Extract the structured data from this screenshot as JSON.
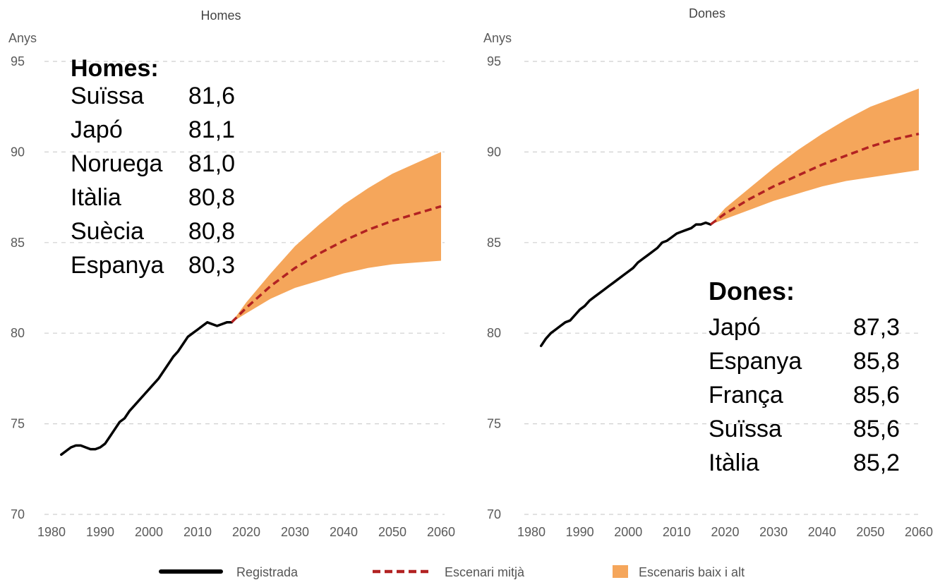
{
  "chart_data": [
    {
      "type": "line",
      "title": "Homes",
      "ylabel": "Anys",
      "xlim": [
        1980,
        2060
      ],
      "ylim": [
        70,
        95
      ],
      "xticks": [
        1980,
        1990,
        2000,
        2010,
        2020,
        2030,
        2040,
        2050,
        2060
      ],
      "yticks": [
        70,
        75,
        80,
        85,
        90,
        95
      ],
      "grid": true,
      "series": [
        {
          "name": "Registrada",
          "style": "solid",
          "color": "#000000",
          "x": [
            1982,
            1983,
            1984,
            1985,
            1986,
            1987,
            1988,
            1989,
            1990,
            1991,
            1992,
            1993,
            1994,
            1995,
            1996,
            1997,
            1998,
            1999,
            2000,
            2001,
            2002,
            2003,
            2004,
            2005,
            2006,
            2007,
            2008,
            2009,
            2010,
            2011,
            2012,
            2013,
            2014,
            2015,
            2016,
            2017
          ],
          "y": [
            73.3,
            73.5,
            73.7,
            73.8,
            73.8,
            73.7,
            73.6,
            73.6,
            73.7,
            73.9,
            74.3,
            74.7,
            75.1,
            75.3,
            75.7,
            76.0,
            76.3,
            76.6,
            76.9,
            77.2,
            77.5,
            77.9,
            78.3,
            78.7,
            79.0,
            79.4,
            79.8,
            80.0,
            80.2,
            80.4,
            80.6,
            80.5,
            80.4,
            80.5,
            80.6,
            80.6
          ]
        },
        {
          "name": "Escenari mitjà",
          "style": "dashed",
          "color": "#b22222",
          "x": [
            2017,
            2020,
            2025,
            2030,
            2035,
            2040,
            2045,
            2050,
            2055,
            2060
          ],
          "y": [
            80.6,
            81.4,
            82.6,
            83.6,
            84.4,
            85.1,
            85.7,
            86.2,
            86.6,
            87.0
          ]
        },
        {
          "name": "Escenaris baix i alt",
          "style": "band",
          "color": "#f5a65b",
          "x": [
            2017,
            2020,
            2025,
            2030,
            2035,
            2040,
            2045,
            2050,
            2055,
            2060
          ],
          "low": [
            80.6,
            81.1,
            81.9,
            82.5,
            82.9,
            83.3,
            83.6,
            83.8,
            83.9,
            84.0
          ],
          "high": [
            80.6,
            81.7,
            83.3,
            84.8,
            86.0,
            87.1,
            88.0,
            88.8,
            89.4,
            90.0
          ]
        }
      ],
      "annotation": {
        "heading": "Homes:",
        "rows": [
          {
            "country": "Suïssa",
            "value": "81,6"
          },
          {
            "country": "Japó",
            "value": "81,1"
          },
          {
            "country": "Noruega",
            "value": "81,0"
          },
          {
            "country": "Itàlia",
            "value": "80,8"
          },
          {
            "country": "Suècia",
            "value": "80,8"
          },
          {
            "country": "Espanya",
            "value": "80,3"
          }
        ]
      }
    },
    {
      "type": "line",
      "title": "Dones",
      "ylabel": "Anys",
      "xlim": [
        1980,
        2060
      ],
      "ylim": [
        70,
        95
      ],
      "xticks": [
        1980,
        1990,
        2000,
        2010,
        2020,
        2030,
        2040,
        2050,
        2060
      ],
      "yticks": [
        70,
        75,
        80,
        85,
        90,
        95
      ],
      "grid": true,
      "series": [
        {
          "name": "Registrada",
          "style": "solid",
          "color": "#000000",
          "x": [
            1982,
            1983,
            1984,
            1985,
            1986,
            1987,
            1988,
            1989,
            1990,
            1991,
            1992,
            1993,
            1994,
            1995,
            1996,
            1997,
            1998,
            1999,
            2000,
            2001,
            2002,
            2003,
            2004,
            2005,
            2006,
            2007,
            2008,
            2009,
            2010,
            2011,
            2012,
            2013,
            2014,
            2015,
            2016,
            2017
          ],
          "y": [
            79.3,
            79.7,
            80.0,
            80.2,
            80.4,
            80.6,
            80.7,
            81.0,
            81.3,
            81.5,
            81.8,
            82.0,
            82.2,
            82.4,
            82.6,
            82.8,
            83.0,
            83.2,
            83.4,
            83.6,
            83.9,
            84.1,
            84.3,
            84.5,
            84.7,
            85.0,
            85.1,
            85.3,
            85.5,
            85.6,
            85.7,
            85.8,
            86.0,
            86.0,
            86.1,
            86.0
          ]
        },
        {
          "name": "Escenari mitjà",
          "style": "dashed",
          "color": "#b22222",
          "x": [
            2017,
            2020,
            2025,
            2030,
            2035,
            2040,
            2045,
            2050,
            2055,
            2060
          ],
          "y": [
            86.0,
            86.6,
            87.4,
            88.1,
            88.7,
            89.3,
            89.8,
            90.3,
            90.7,
            91.0
          ]
        },
        {
          "name": "Escenaris baix i alt",
          "style": "band",
          "color": "#f5a65b",
          "x": [
            2017,
            2020,
            2025,
            2030,
            2035,
            2040,
            2045,
            2050,
            2055,
            2060
          ],
          "low": [
            86.0,
            86.3,
            86.8,
            87.3,
            87.7,
            88.1,
            88.4,
            88.6,
            88.8,
            89.0
          ],
          "high": [
            86.0,
            86.9,
            88.0,
            89.1,
            90.1,
            91.0,
            91.8,
            92.5,
            93.0,
            93.5
          ]
        }
      ],
      "annotation": {
        "heading": "Dones:",
        "rows": [
          {
            "country": "Japó",
            "value": "87,3"
          },
          {
            "country": "Espanya",
            "value": "85,8"
          },
          {
            "country": "França",
            "value": "85,6"
          },
          {
            "country": "Suïssa",
            "value": "85,6"
          },
          {
            "country": "Itàlia",
            "value": "85,2"
          }
        ]
      }
    }
  ],
  "legend": [
    {
      "label": "Registrada",
      "style": "solid",
      "color": "#000000"
    },
    {
      "label": "Escenari mitjà",
      "style": "dashed",
      "color": "#b22222"
    },
    {
      "label": "Escenaris baix i alt",
      "style": "band",
      "color": "#f5a65b"
    }
  ]
}
